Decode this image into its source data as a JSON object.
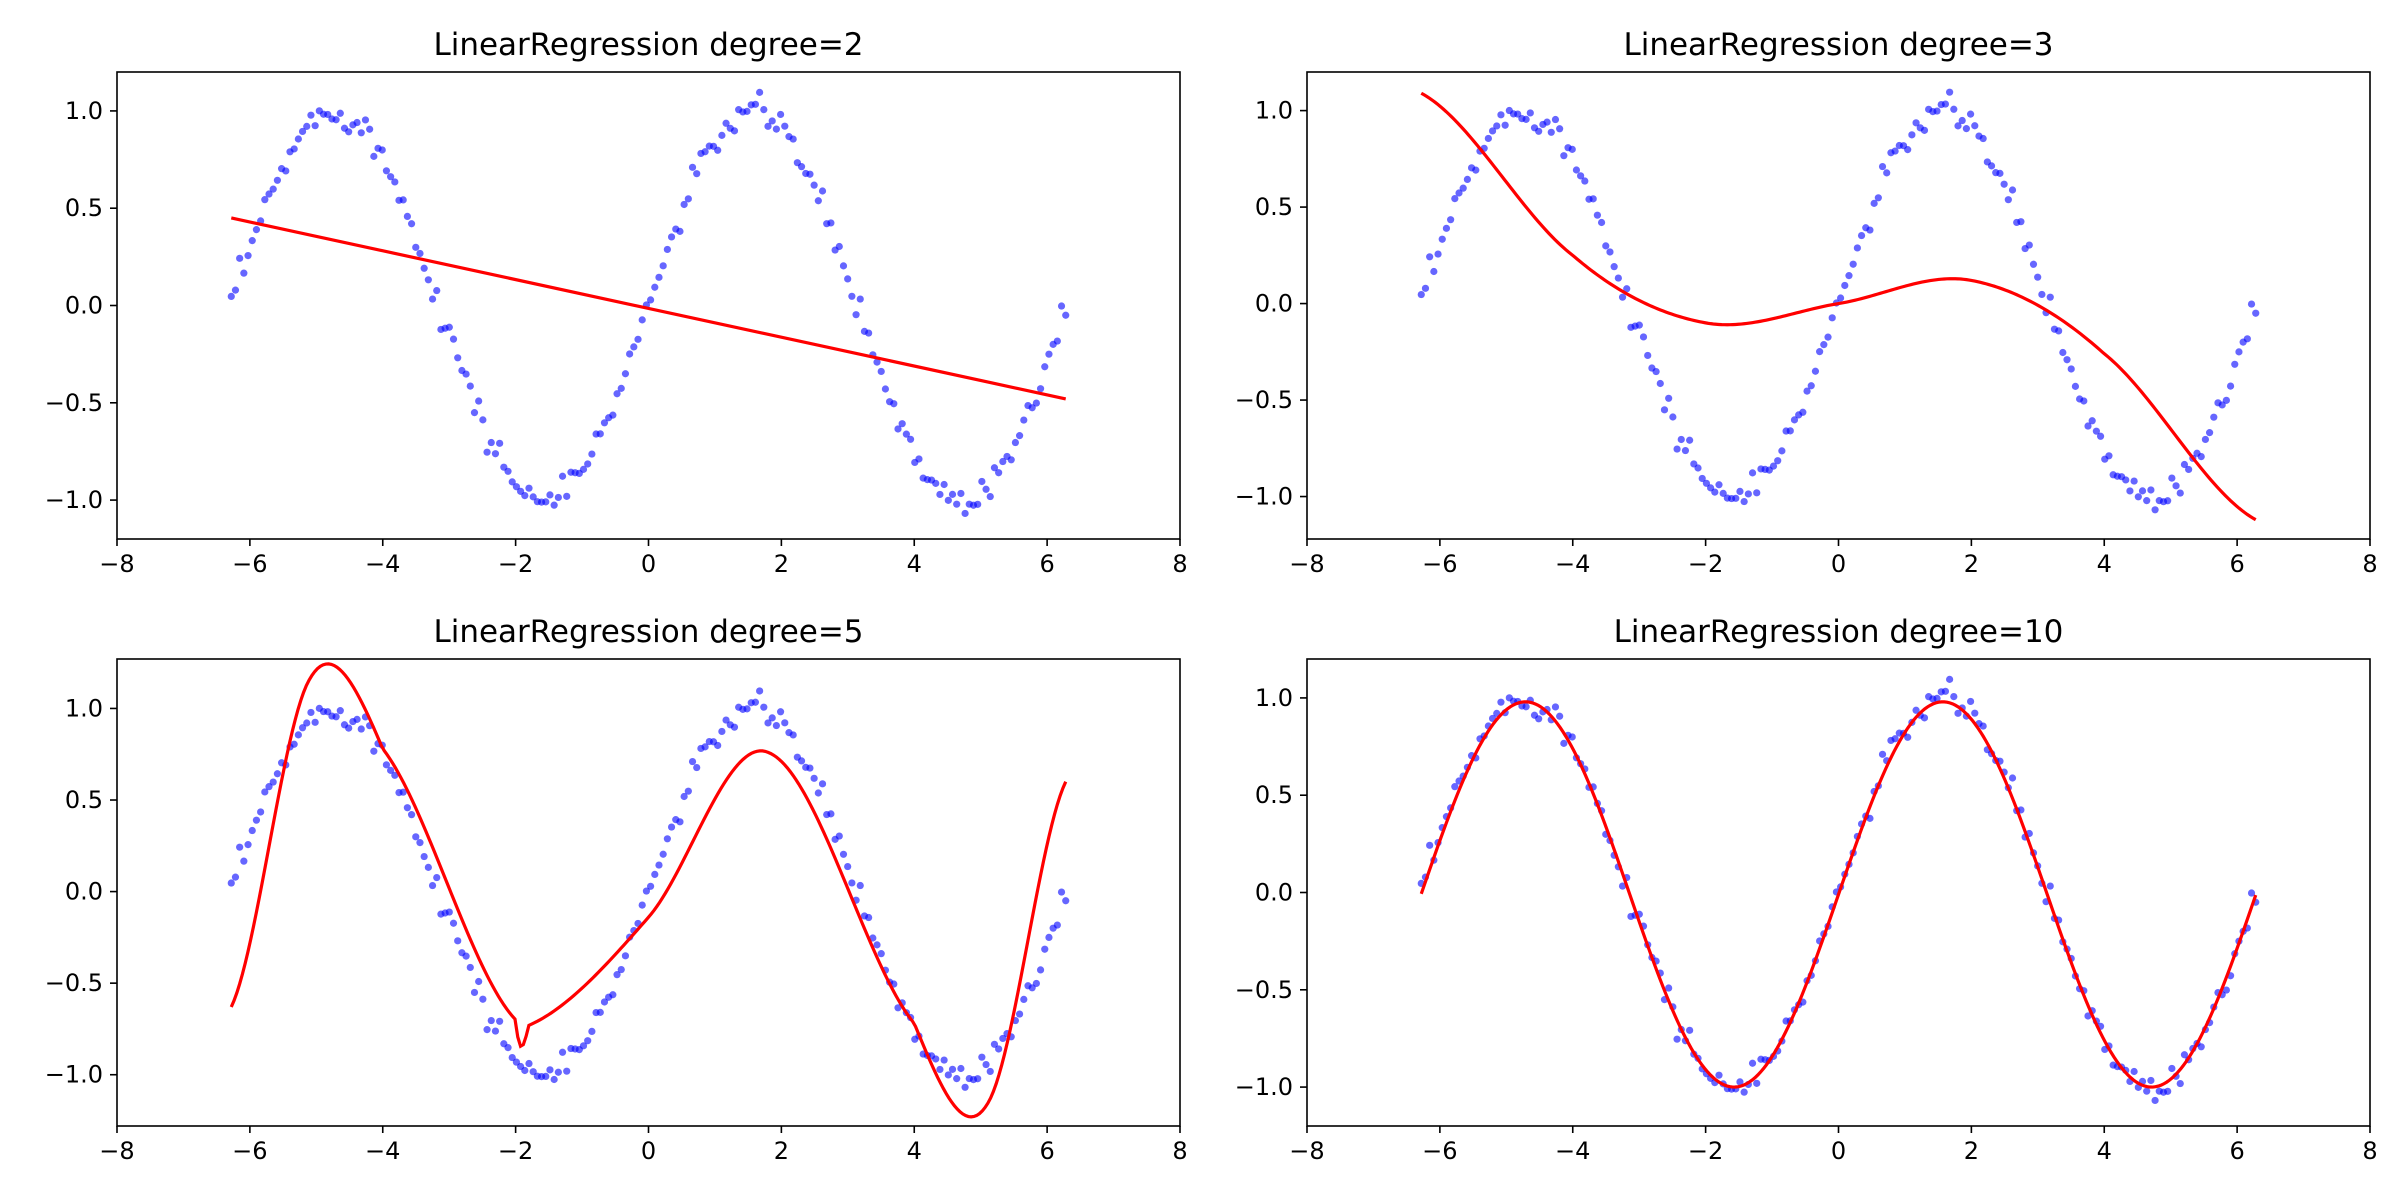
{
  "chart_data": [
    {
      "type": "scatter",
      "title": "LinearRegression degree=2",
      "xlabel": "",
      "ylabel": "",
      "xlim": [
        -8,
        8
      ],
      "ylim": [
        -1.2,
        1.2
      ],
      "xticks": [
        -8,
        -6,
        -4,
        -2,
        0,
        2,
        4,
        6,
        8
      ],
      "yticks": [
        -1.0,
        -0.5,
        0.0,
        0.5,
        1.0
      ],
      "x_tick_labels": [
        "−8",
        "−6",
        "−4",
        "−2",
        "0",
        "2",
        "4",
        "6",
        "8"
      ],
      "y_tick_labels": [
        "−1.0",
        "−0.5",
        "0.0",
        "0.5",
        "1.0"
      ],
      "grid": false,
      "scatter": {
        "function": "sin(x) + noise",
        "x_range": [
          -6.28,
          6.28
        ],
        "points": 200,
        "color": "#0000ff"
      },
      "fit_line": {
        "x": [
          -6.28,
          6.28
        ],
        "y": [
          0.45,
          -0.48
        ],
        "color": "#ff0000"
      }
    },
    {
      "type": "scatter",
      "title": "LinearRegression degree=3",
      "xlabel": "",
      "ylabel": "",
      "xlim": [
        -8,
        8
      ],
      "ylim": [
        -1.22,
        1.2
      ],
      "xticks": [
        -8,
        -6,
        -4,
        -2,
        0,
        2,
        4,
        6,
        8
      ],
      "yticks": [
        -1.0,
        -0.5,
        0.0,
        0.5,
        1.0
      ],
      "x_tick_labels": [
        "−8",
        "−6",
        "−4",
        "−2",
        "0",
        "2",
        "4",
        "6",
        "8"
      ],
      "y_tick_labels": [
        "−1.0",
        "−0.5",
        "0.0",
        "0.5",
        "1.0"
      ],
      "grid": false,
      "scatter": {
        "function": "sin(x) + noise",
        "x_range": [
          -6.28,
          6.28
        ],
        "points": 200,
        "color": "#0000ff"
      },
      "fit_line": {
        "x": [
          -6.28,
          -4,
          -2,
          0,
          2,
          4,
          6.28
        ],
        "y": [
          1.09,
          0.25,
          -0.1,
          0.0,
          0.12,
          -0.26,
          -1.12
        ],
        "color": "#ff0000"
      }
    },
    {
      "type": "scatter",
      "title": "LinearRegression degree=5",
      "xlabel": "",
      "ylabel": "",
      "xlim": [
        -8,
        8
      ],
      "ylim": [
        -1.28,
        1.27
      ],
      "xticks": [
        -8,
        -6,
        -4,
        -2,
        0,
        2,
        4,
        6,
        8
      ],
      "yticks": [
        -1.0,
        -0.5,
        0.0,
        0.5,
        1.0
      ],
      "x_tick_labels": [
        "−8",
        "−6",
        "−4",
        "−2",
        "0",
        "2",
        "4",
        "6",
        "8"
      ],
      "y_tick_labels": [
        "−1.0",
        "−0.5",
        "0.0",
        "0.5",
        "1.0"
      ],
      "grid": false,
      "scatter": {
        "function": "sin(x) + noise",
        "x_range": [
          -6.28,
          6.28
        ],
        "points": 200,
        "color": "#0000ff"
      },
      "fit_line": {
        "x": [
          -6.28,
          -5.1,
          -4,
          -2,
          -1.8,
          0,
          1.8,
          4,
          5.1,
          6.28
        ],
        "y": [
          -0.63,
          1.16,
          0.78,
          -0.7,
          -0.73,
          -0.14,
          0.76,
          -0.72,
          -1.16,
          0.6
        ],
        "color": "#ff0000"
      }
    },
    {
      "type": "scatter",
      "title": "LinearRegression degree=10",
      "xlabel": "",
      "ylabel": "",
      "xlim": [
        -8,
        8
      ],
      "ylim": [
        -1.2,
        1.2
      ],
      "xticks": [
        -8,
        -6,
        -4,
        -2,
        0,
        2,
        4,
        6,
        8
      ],
      "yticks": [
        -1.0,
        -0.5,
        0.0,
        0.5,
        1.0
      ],
      "x_tick_labels": [
        "−8",
        "−6",
        "−4",
        "−2",
        "0",
        "2",
        "4",
        "6",
        "8"
      ],
      "y_tick_labels": [
        "−1.0",
        "−0.5",
        "0.0",
        "0.5",
        "1.0"
      ],
      "grid": false,
      "scatter": {
        "function": "sin(x) + noise",
        "x_range": [
          -6.28,
          6.28
        ],
        "points": 200,
        "color": "#0000ff"
      },
      "fit_line": {
        "function": "sin(x)",
        "x_range": [
          -6.28,
          6.28
        ],
        "color": "#ff0000"
      }
    }
  ]
}
